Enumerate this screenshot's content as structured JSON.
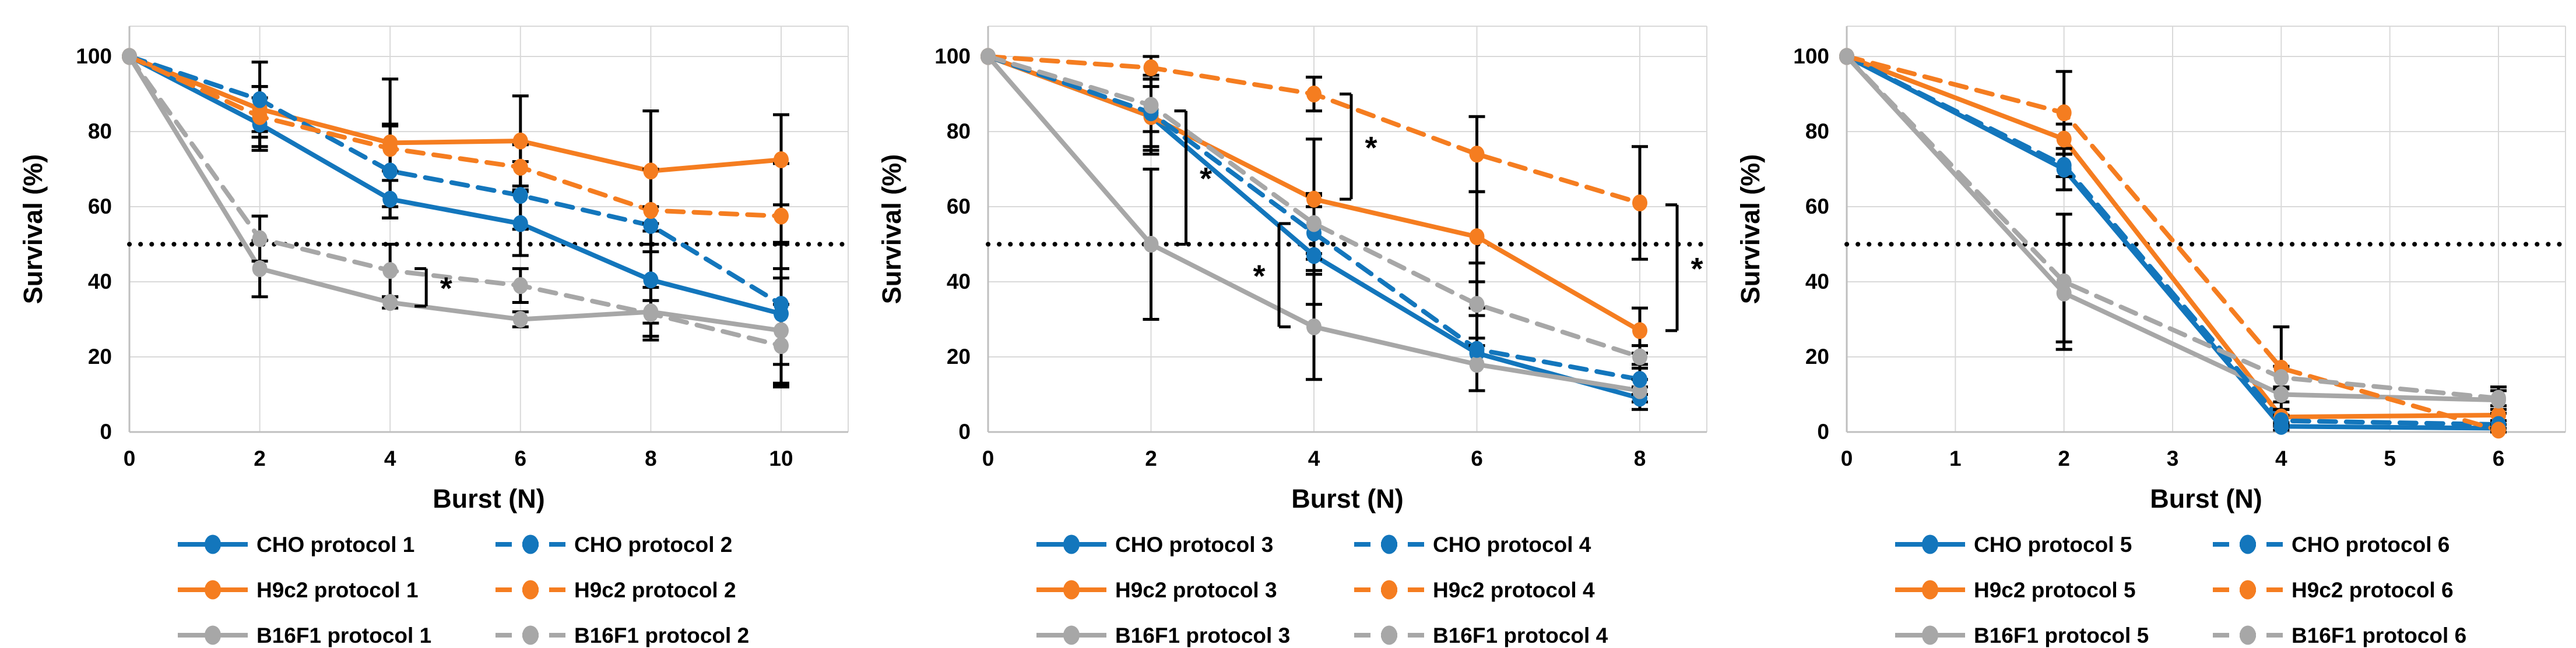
{
  "figure": {
    "background": "#FFFFFF",
    "significance_symbol": "*"
  },
  "colors": {
    "blue": "#1376BC",
    "orange": "#F57D20",
    "gray": "#A7A7A7",
    "grid": "#D9D9D9",
    "axis": "#BFBFBF",
    "error_bar": "#000000",
    "threshold": "#000000",
    "text": "#000000"
  },
  "chart_data": [
    {
      "type": "line",
      "title": "",
      "xlabel": "Burst (N)",
      "ylabel": "Survival (%)",
      "x": [
        0,
        2,
        4,
        6,
        8,
        10
      ],
      "xticks": [
        "0",
        "2",
        "4",
        "6",
        "8",
        "10"
      ],
      "xtick_values": [
        0,
        2,
        4,
        6,
        8,
        10
      ],
      "xmax": 10,
      "yticks": [
        "0",
        "20",
        "40",
        "60",
        "80",
        "100"
      ],
      "ytick_values": [
        0,
        20,
        40,
        60,
        80,
        100
      ],
      "ylim": [
        0,
        108
      ],
      "grid": true,
      "threshold_y": 50,
      "legend_position": "bottom",
      "series": [
        {
          "name": "CHO  protocol 1",
          "color_key": "blue",
          "style": "solid",
          "values": [
            100,
            82,
            62,
            55.5,
            40.5,
            31.5
          ],
          "err": [
            0,
            7,
            5,
            8.5,
            15,
            19
          ]
        },
        {
          "name": "H9c2 protocol 1",
          "color_key": "orange",
          "style": "solid",
          "values": [
            100,
            86,
            77,
            77.5,
            69.5,
            72.5
          ],
          "err": [
            0,
            6,
            17,
            12,
            16,
            12
          ]
        },
        {
          "name": "B16F1 protocol 1",
          "color_key": "gray",
          "style": "solid",
          "values": [
            100,
            43.5,
            34.5,
            30,
            32,
            27
          ],
          "err": [
            0,
            7.5,
            1.5,
            2,
            3,
            14
          ]
        },
        {
          "name": "CHO protocol 2",
          "color_key": "blue",
          "style": "dashed",
          "values": [
            100,
            88.5,
            69.5,
            63,
            55,
            34
          ],
          "err": [
            0,
            10,
            12.5,
            9,
            5,
            16
          ]
        },
        {
          "name": "H9c2 protocol 2",
          "color_key": "orange",
          "style": "dashed",
          "values": [
            100,
            84,
            75.5,
            70.5,
            59,
            57.5
          ],
          "err": [
            0,
            8,
            6,
            6,
            11,
            14
          ]
        },
        {
          "name": "B16F1 protocol 2",
          "color_key": "gray",
          "style": "dashed",
          "values": [
            100,
            51.5,
            43,
            39,
            31.5,
            23
          ],
          "err": [
            0,
            6,
            7,
            4.5,
            7,
            11
          ]
        }
      ],
      "significance": [
        {
          "x": 4,
          "dx": 62,
          "top": 43.5,
          "bottom": 33.5,
          "star": "*",
          "side": "right"
        }
      ],
      "legend_columns": [
        [
          0,
          1,
          2
        ],
        [
          3,
          4,
          5
        ]
      ]
    },
    {
      "type": "line",
      "title": "",
      "xlabel": "Burst (N)",
      "ylabel": "Survival (%)",
      "x": [
        0,
        2,
        4,
        6,
        8
      ],
      "xticks": [
        "0",
        "2",
        "4",
        "6",
        "8"
      ],
      "xtick_values": [
        0,
        2,
        4,
        6,
        8
      ],
      "xmax": 8,
      "yticks": [
        "0",
        "20",
        "40",
        "60",
        "80",
        "100"
      ],
      "ytick_values": [
        0,
        20,
        40,
        60,
        80,
        100
      ],
      "ylim": [
        0,
        108
      ],
      "grid": true,
      "threshold_y": 50,
      "legend_position": "bottom",
      "series": [
        {
          "name": "CHO protocol 3",
          "color_key": "blue",
          "style": "solid",
          "values": [
            100,
            84,
            47,
            21,
            9
          ],
          "err": [
            0,
            10,
            13,
            10,
            3
          ]
        },
        {
          "name": "H9c2 protocol 3",
          "color_key": "orange",
          "style": "solid",
          "values": [
            100,
            84,
            62,
            52,
            27
          ],
          "err": [
            0,
            8,
            16,
            12,
            6
          ]
        },
        {
          "name": "B16F1 protocol 3",
          "color_key": "gray",
          "style": "solid",
          "values": [
            100,
            50,
            28,
            18,
            11
          ],
          "err": [
            0,
            20,
            14,
            7,
            3
          ]
        },
        {
          "name": "CHO protocol 4",
          "color_key": "blue",
          "style": "dashed",
          "values": [
            100,
            85,
            53,
            22,
            14
          ],
          "err": [
            0,
            10,
            10,
            11,
            4
          ]
        },
        {
          "name": "H9c2 protocol 4",
          "color_key": "orange",
          "style": "dashed",
          "values": [
            100,
            97,
            90,
            74,
            61
          ],
          "err": [
            0,
            3,
            4.5,
            10,
            15
          ]
        },
        {
          "name": "B16F1 protocol 4",
          "color_key": "gray",
          "style": "dashed",
          "values": [
            100,
            87,
            55.5,
            34,
            20
          ],
          "err": [
            0,
            7,
            8,
            11,
            3
          ]
        }
      ],
      "significance": [
        {
          "x": 2,
          "dx": 60,
          "top": 85.5,
          "bottom": 50,
          "star": "*",
          "side": "right"
        },
        {
          "x": 4,
          "dx": 64,
          "top": 90,
          "bottom": 62,
          "star": "*",
          "side": "right"
        },
        {
          "x": 4,
          "dx": -60,
          "top": 55.5,
          "bottom": 28,
          "star": "*",
          "side": "left"
        },
        {
          "x": 8,
          "dx": 64,
          "top": 60.5,
          "bottom": 27,
          "star": "*",
          "side": "right"
        }
      ],
      "legend_columns": [
        [
          0,
          1,
          2
        ],
        [
          3,
          4,
          5
        ]
      ]
    },
    {
      "type": "line",
      "title": "",
      "xlabel": "Burst (N)",
      "ylabel": "Survival (%)",
      "x": [
        0,
        2,
        4,
        6
      ],
      "xticks": [
        "0",
        "1",
        "2",
        "3",
        "4",
        "5",
        "6"
      ],
      "xtick_values": [
        0,
        1,
        2,
        3,
        4,
        5,
        6
      ],
      "xmax": 6,
      "yticks": [
        "0",
        "20",
        "40",
        "60",
        "80",
        "100"
      ],
      "ytick_values": [
        0,
        20,
        40,
        60,
        80,
        100
      ],
      "ylim": [
        0,
        108
      ],
      "grid": true,
      "threshold_y": 50,
      "legend_position": "bottom",
      "series": [
        {
          "name": "CHO protocol 5",
          "color_key": "blue",
          "style": "solid",
          "values": [
            100,
            70,
            1.5,
            1
          ],
          "err": [
            0,
            5.5,
            1,
            1
          ]
        },
        {
          "name": "H9c2 protocol 5",
          "color_key": "orange",
          "style": "solid",
          "values": [
            100,
            78,
            4,
            4.5
          ],
          "err": [
            0,
            4,
            2,
            1.5
          ]
        },
        {
          "name": "B16F1 protocol 5",
          "color_key": "gray",
          "style": "solid",
          "values": [
            100,
            37,
            10,
            8.5
          ],
          "err": [
            0,
            13,
            2,
            3.5
          ]
        },
        {
          "name": "CHO protocol 6",
          "color_key": "blue",
          "style": "dashed",
          "values": [
            100,
            71,
            3,
            2
          ],
          "err": [
            0,
            3,
            1.5,
            1
          ]
        },
        {
          "name": "H9c2 protocol 6",
          "color_key": "orange",
          "style": "dashed",
          "values": [
            100,
            85,
            17,
            0.5
          ],
          "err": [
            0,
            11,
            11,
            0.5
          ]
        },
        {
          "name": "B16F1 protocol 6",
          "color_key": "gray",
          "style": "dashed",
          "values": [
            100,
            40,
            14.5,
            9
          ],
          "err": [
            0,
            18,
            3,
            2
          ]
        }
      ],
      "significance": [],
      "legend_columns": [
        [
          0,
          1,
          2
        ],
        [
          3,
          4,
          5
        ]
      ]
    }
  ]
}
